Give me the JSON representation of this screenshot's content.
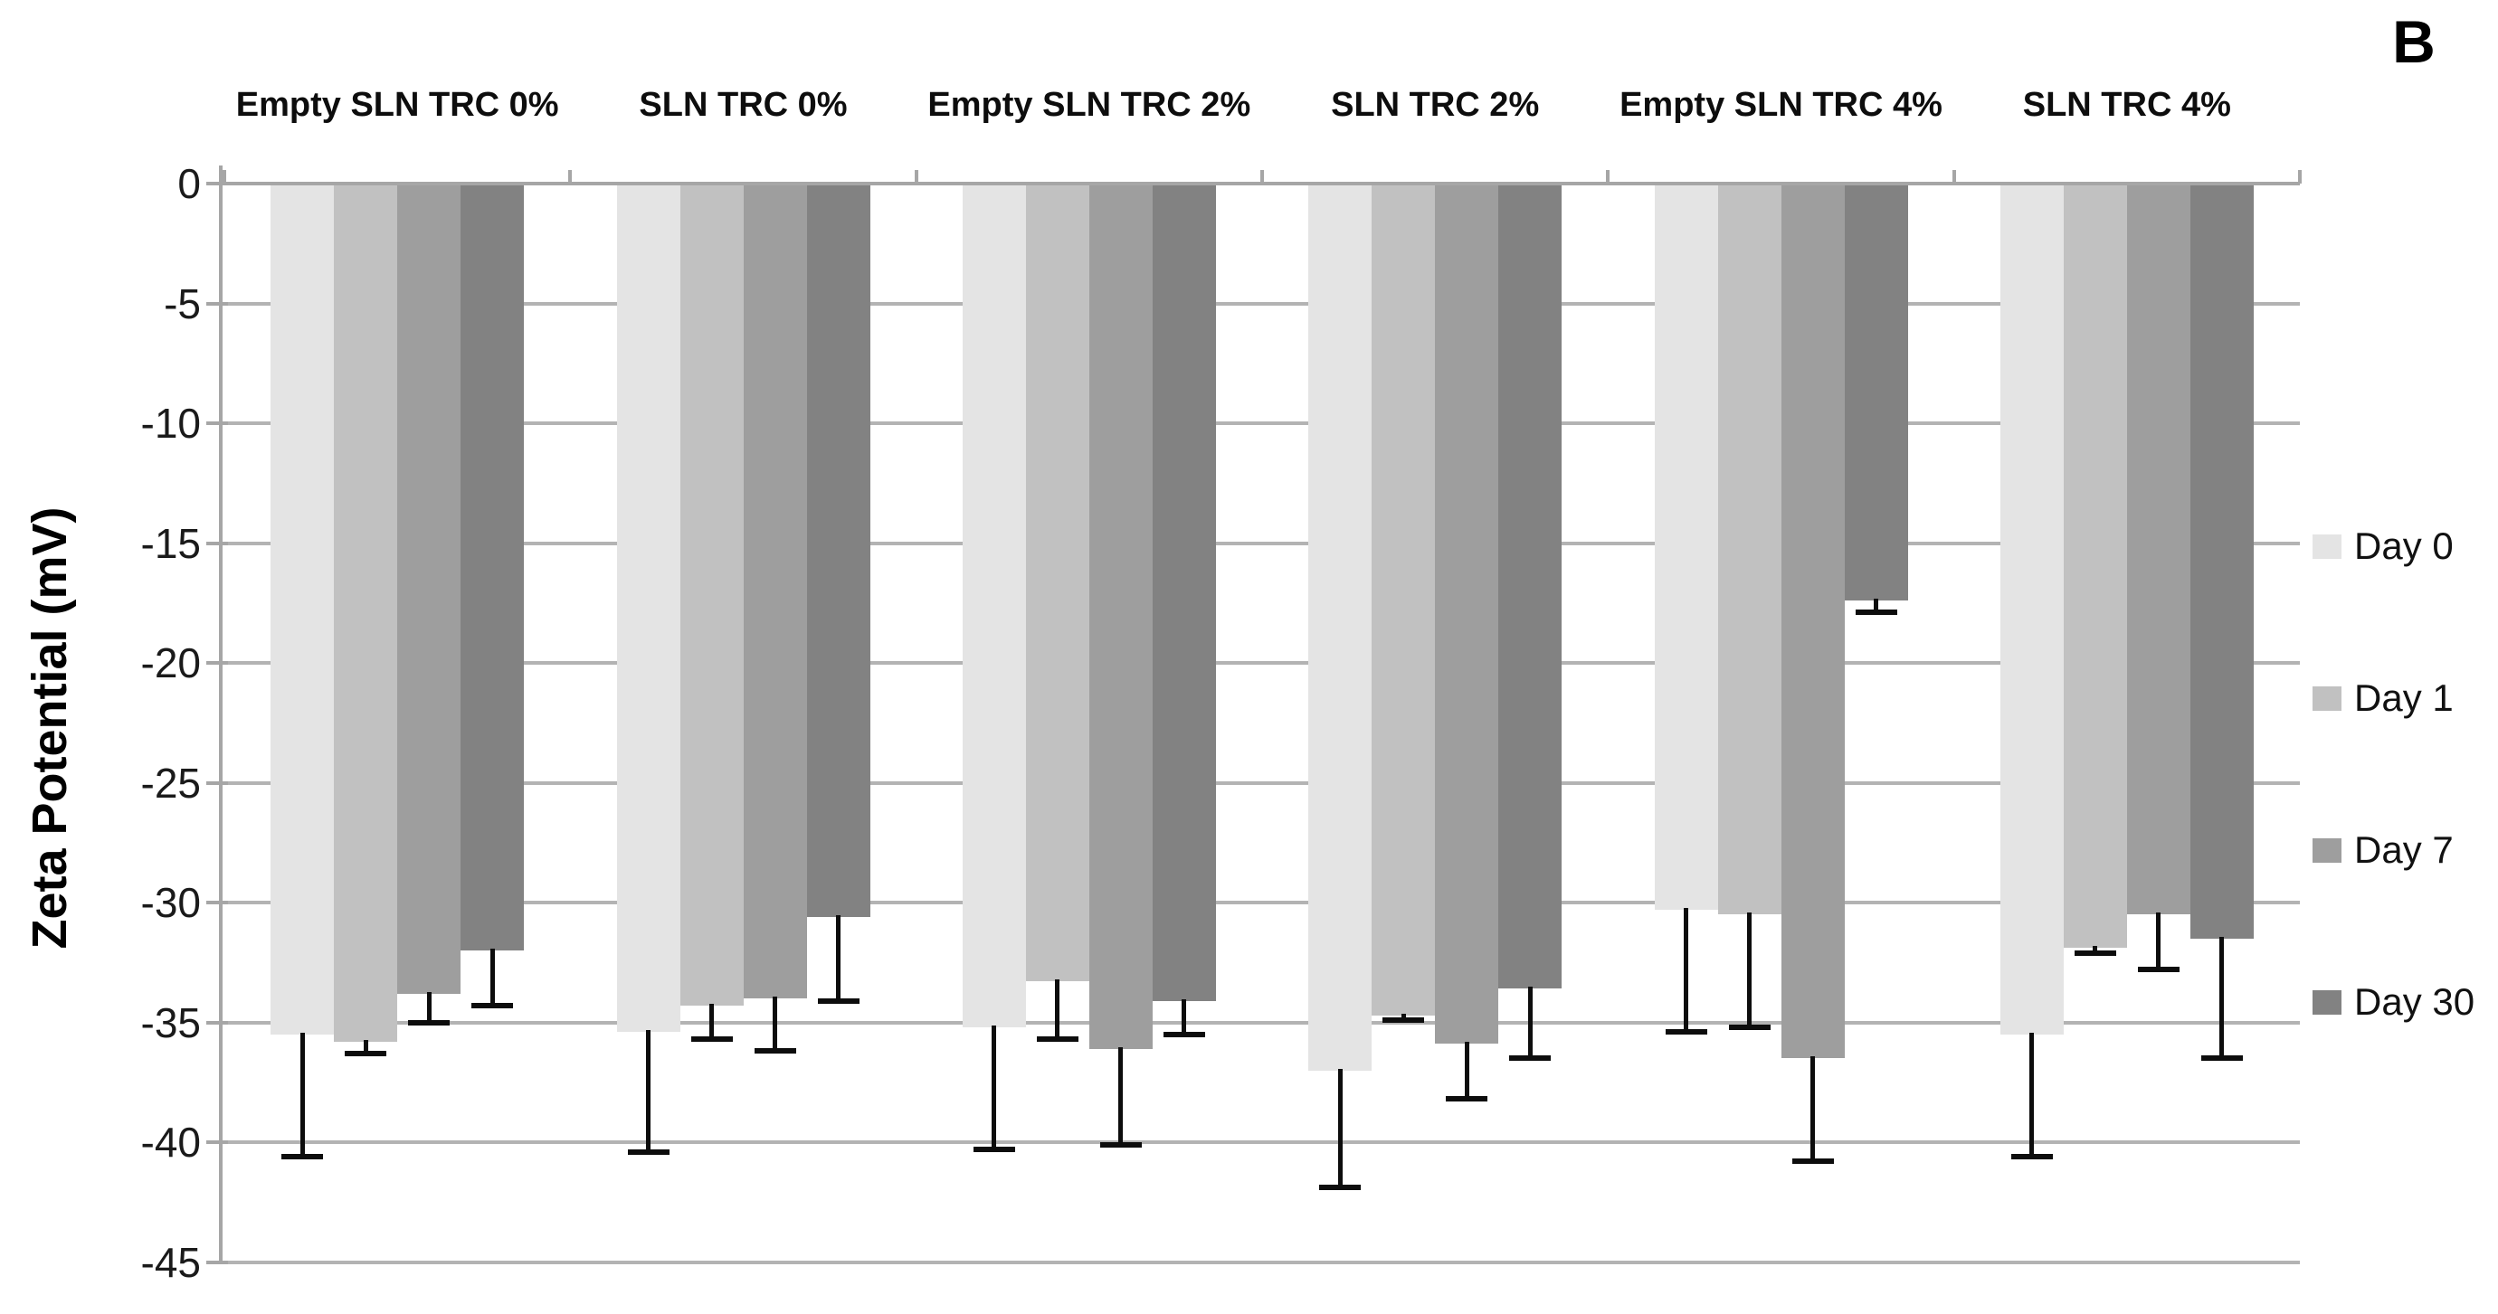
{
  "panel_label": "B",
  "chart_data": {
    "type": "bar",
    "orientation": "vertical",
    "title": "",
    "xlabel": "",
    "ylabel": "Zeta Potential (mV)",
    "ylim": [
      -45,
      0
    ],
    "ytick_interval": 5,
    "ytick_labels": [
      "0",
      "-5",
      "-10",
      "-15",
      "-20",
      "-25",
      "-30",
      "-35",
      "-40",
      "-45"
    ],
    "grid": true,
    "legend_position": "right",
    "error_bars": "lower-only",
    "categories": [
      "Empty SLN TRC 0%",
      "SLN TRC 0%",
      "Empty SLN TRC 2%",
      "SLN TRC 2%",
      "Empty SLN TRC 4%",
      "SLN TRC 4%"
    ],
    "series": [
      {
        "name": "Day 0",
        "color": "#e4e4e4",
        "values": [
          -35.5,
          -35.4,
          -35.2,
          -37.0,
          -30.3,
          -35.5
        ],
        "errors": [
          5.1,
          5.0,
          5.1,
          4.9,
          5.1,
          5.1
        ]
      },
      {
        "name": "Day 1",
        "color": "#c1c1c1",
        "values": [
          -35.8,
          -34.3,
          -33.3,
          -34.7,
          -30.5,
          -31.9
        ],
        "errors": [
          0.5,
          1.4,
          2.4,
          0.2,
          4.7,
          0.2
        ]
      },
      {
        "name": "Day 7",
        "color": "#9e9e9e",
        "values": [
          -33.8,
          -34.0,
          -36.1,
          -35.9,
          -36.5,
          -30.5
        ],
        "errors": [
          1.2,
          2.2,
          4.0,
          2.3,
          4.3,
          2.3
        ]
      },
      {
        "name": "Day 30",
        "color": "#828282",
        "values": [
          -32.0,
          -30.6,
          -34.1,
          -33.6,
          -17.4,
          -31.5
        ],
        "errors": [
          2.3,
          3.5,
          1.4,
          2.9,
          0.5,
          5.0
        ]
      }
    ],
    "colors": {
      "gridline": "#b3b3b3",
      "axis": "#a6a6a6",
      "error_bar": "#0d0d0d"
    }
  }
}
